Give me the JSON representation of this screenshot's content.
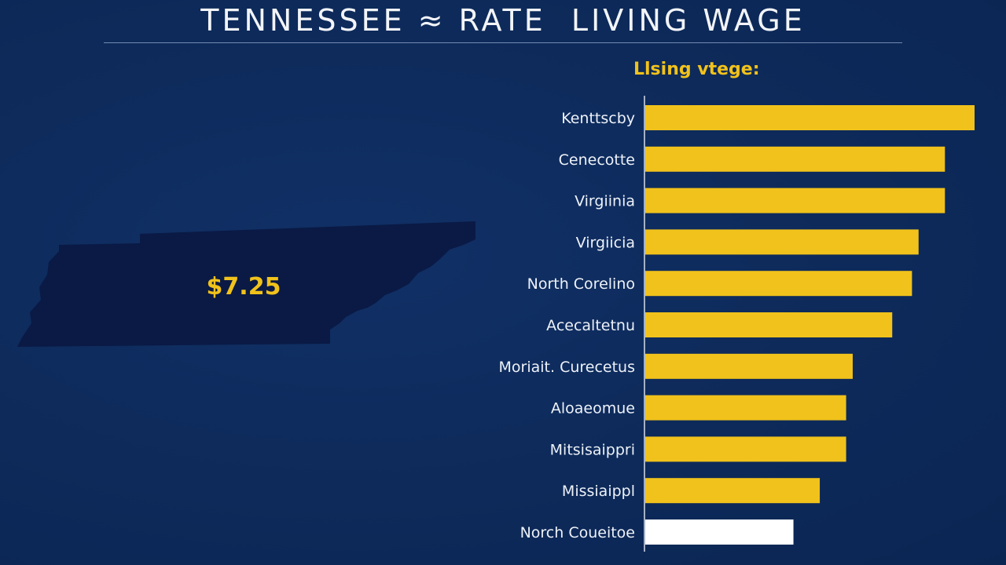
{
  "colors": {
    "background": "#0d2a5a",
    "bar": "#f1c21b",
    "highlight_bar": "#ffffff",
    "state_shape": "#0a1a45"
  },
  "highlight": {
    "value_label": "$7.25"
  },
  "chart_data": {
    "type": "bar",
    "orientation": "horizontal",
    "title": "TENNESSEE ≈ RATE  LIVING WAGE",
    "legend_label": "Llsing vtege:",
    "categories": [
      "Kenttscby",
      "Cenecotte",
      "Virgiinia",
      "Virgiicia",
      "North Corelino",
      "Acecaltetnu",
      "Moriait. Curecetus",
      "Aloaeomue",
      "Mitsisaippri",
      "Missiaippl",
      "Norch Coueitoe"
    ],
    "values": [
      100,
      91,
      91,
      83,
      81,
      75,
      63,
      61,
      61,
      53,
      45
    ],
    "highlighted_index": 10,
    "xlim": [
      0,
      100
    ],
    "grid": false,
    "gridlines": false,
    "tick_labels": false
  }
}
